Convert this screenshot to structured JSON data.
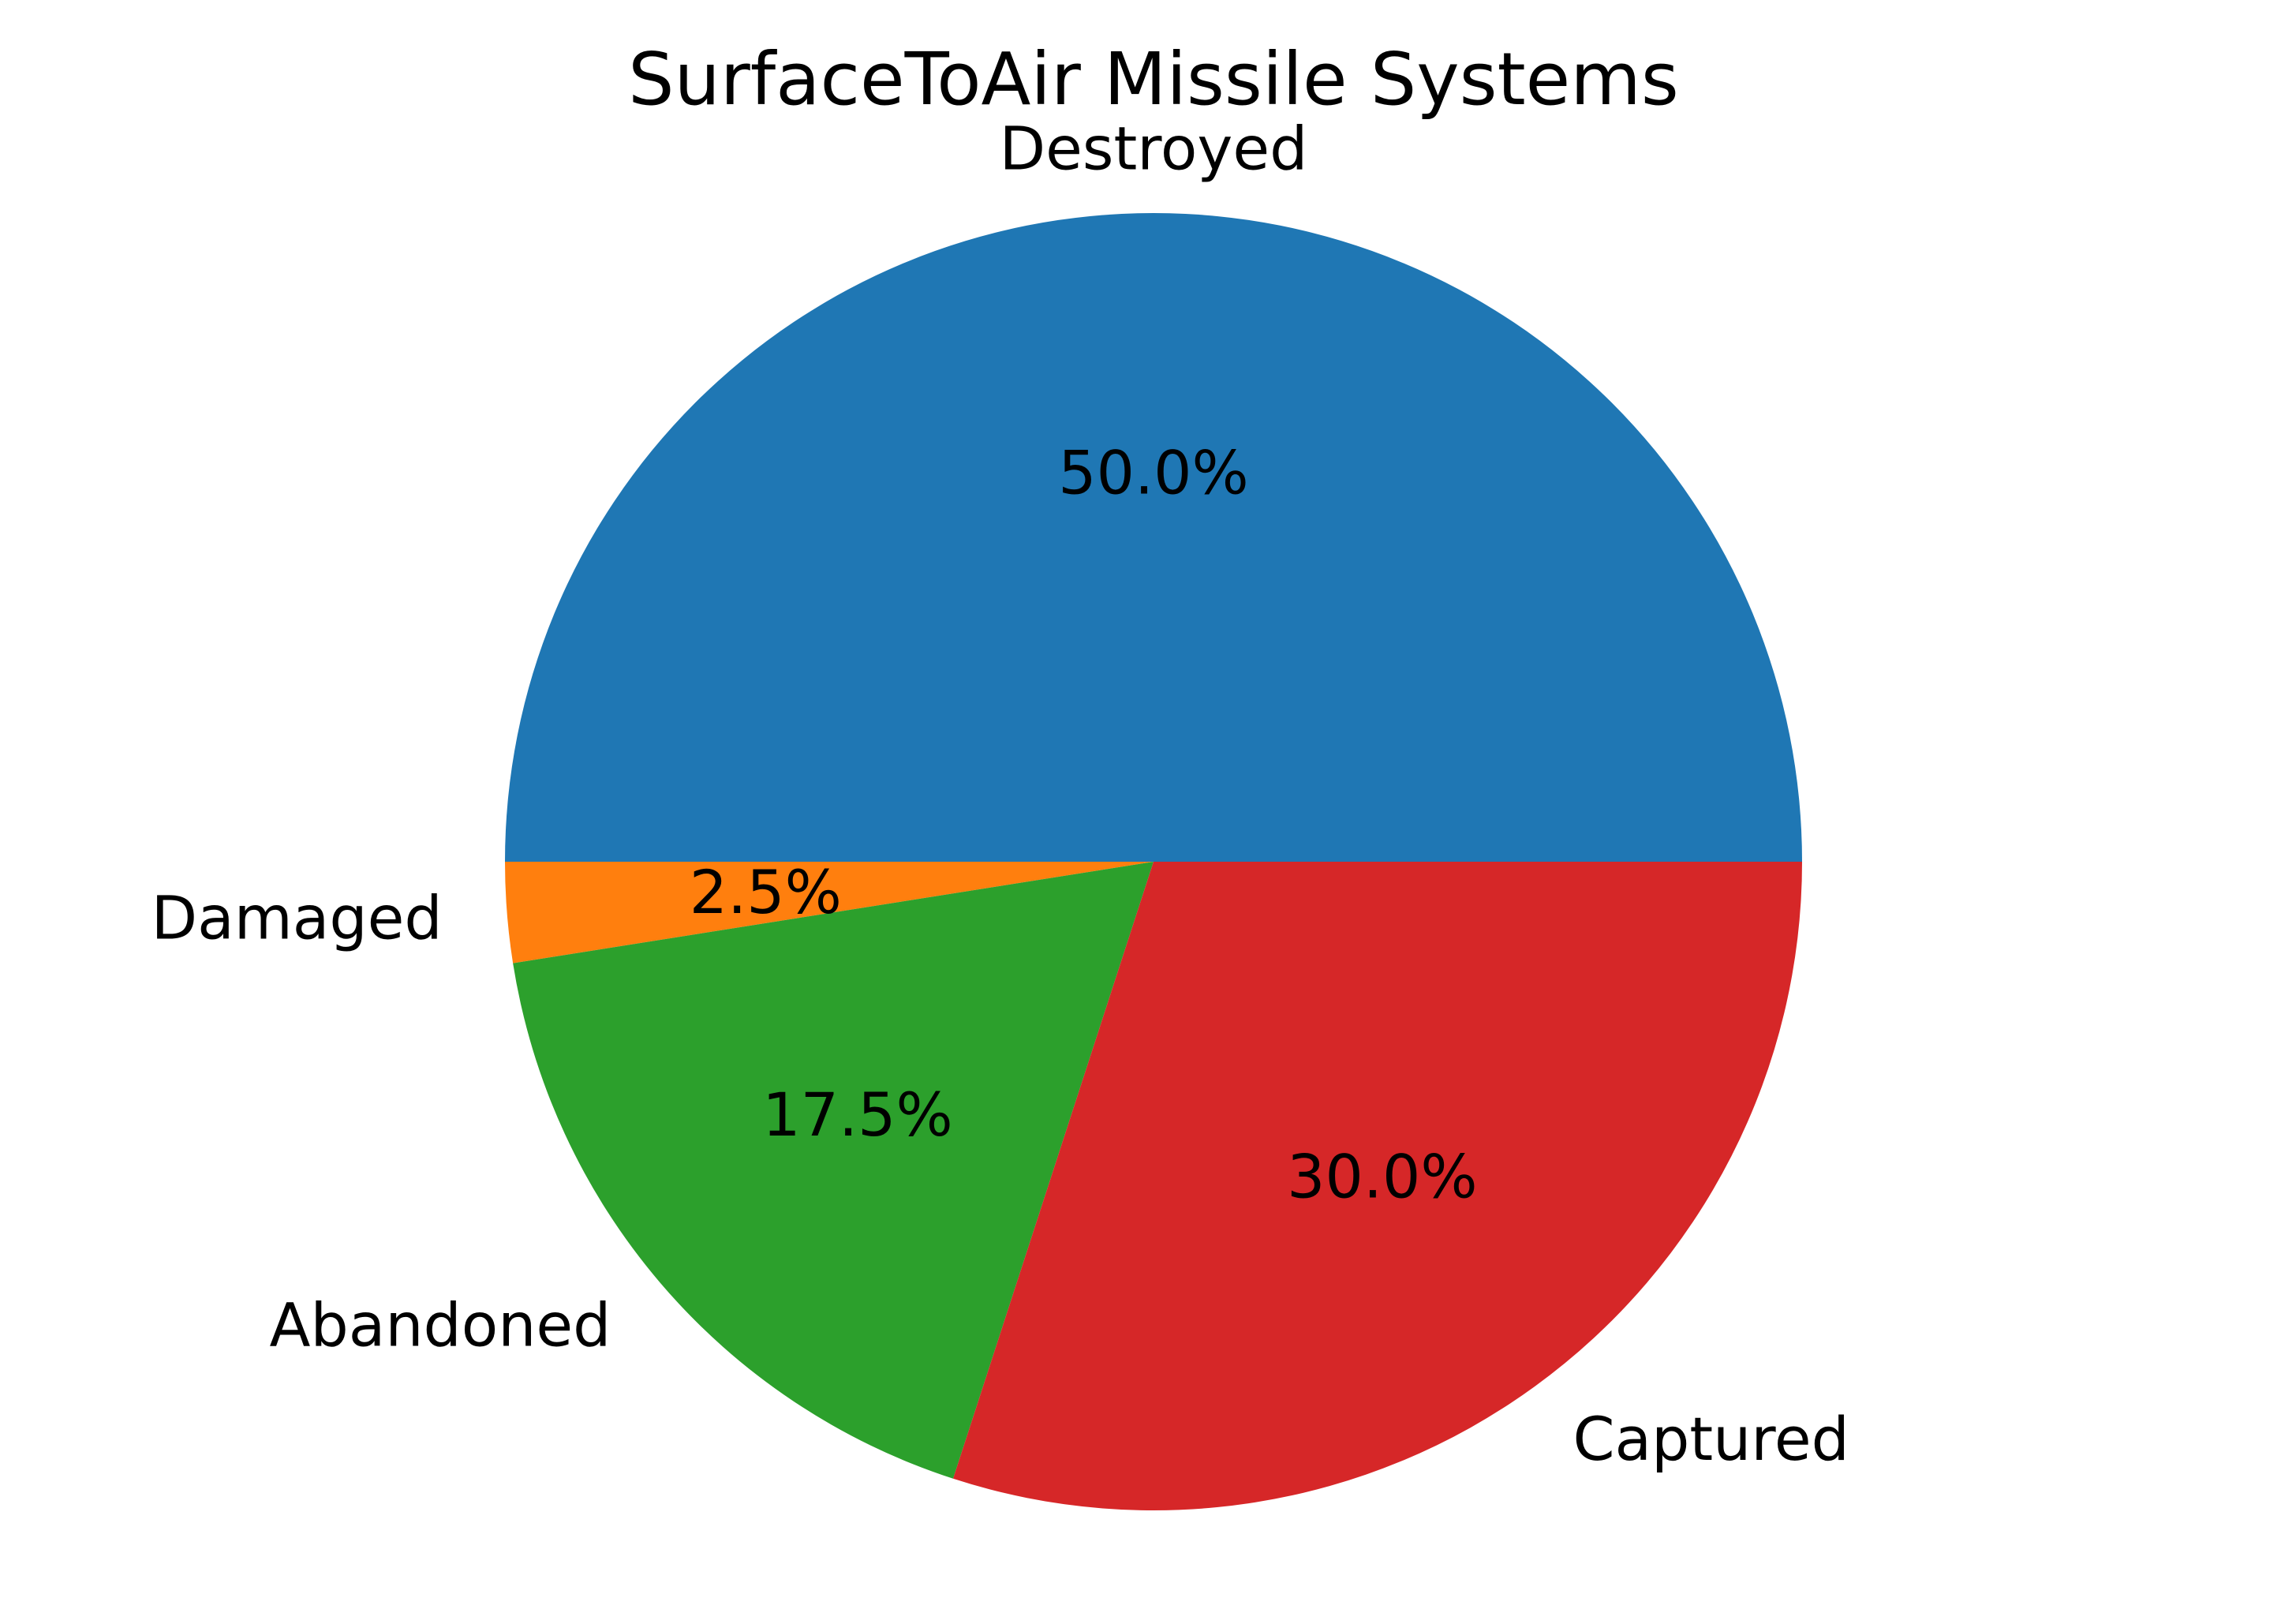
{
  "chart_data": {
    "type": "pie",
    "title": "SurfaceToAir Missile Systems",
    "start_angle": 0,
    "direction": "counterclockwise",
    "slices": [
      {
        "label": "Destroyed",
        "value": 50.0,
        "pct_text": "50.0%",
        "color": "#1f77b4"
      },
      {
        "label": "Damaged",
        "value": 2.5,
        "pct_text": "2.5%",
        "color": "#ff7f0e"
      },
      {
        "label": "Abandoned",
        "value": 17.5,
        "pct_text": "17.5%",
        "color": "#2ca02c"
      },
      {
        "label": "Captured",
        "value": 30.0,
        "pct_text": "30.0%",
        "color": "#d62728"
      }
    ]
  }
}
